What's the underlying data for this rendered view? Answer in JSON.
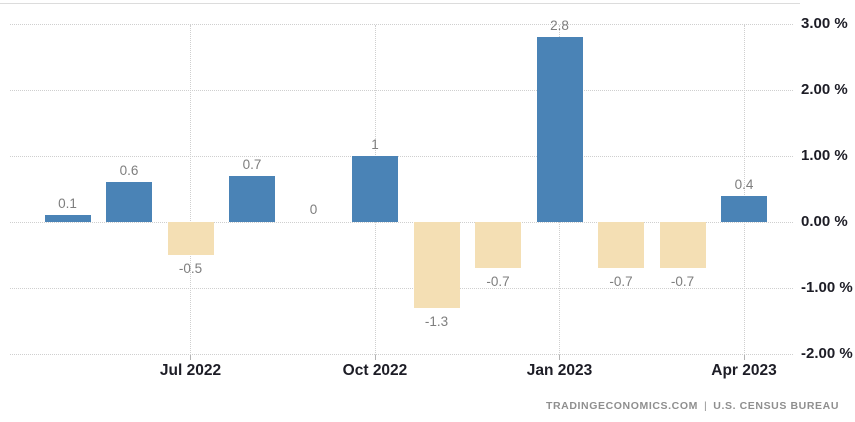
{
  "chart_data": {
    "type": "bar",
    "title": "",
    "values": [
      0.1,
      0.6,
      -0.5,
      0.7,
      0,
      1,
      -1.3,
      -0.7,
      2.8,
      -0.7,
      -0.7,
      0.4
    ],
    "bar_labels": [
      "0.1",
      "0.6",
      "-0.5",
      "0.7",
      "0",
      "1",
      "-1.3",
      "-0.7",
      "2.8",
      "-0.7",
      "-0.7",
      "0.4"
    ],
    "x_axis": {
      "ticks": [
        {
          "index": 2,
          "label": "Jul 2022"
        },
        {
          "index": 5,
          "label": "Oct 2022"
        },
        {
          "index": 8,
          "label": "Jan 2023"
        },
        {
          "index": 11,
          "label": "Apr 2023"
        }
      ]
    },
    "y_axis": {
      "unit": "%",
      "range": [
        -2,
        3
      ],
      "ticks": [
        {
          "value": 3,
          "label": "3.00 %"
        },
        {
          "value": 2,
          "label": "2.00 %"
        },
        {
          "value": 1,
          "label": "1.00 %"
        },
        {
          "value": 0,
          "label": "0.00 %"
        },
        {
          "value": -1,
          "label": "-1.00 %"
        },
        {
          "value": -2,
          "label": "-2.00 %"
        }
      ]
    },
    "grid": {
      "style": "dotted",
      "horizontal": true,
      "vertical": true
    },
    "legend": "none",
    "bar_label_position": "outside-end",
    "colors": {
      "positive": "#4A83B6",
      "negative": "#F4DFB4",
      "grid": "#cfcfcf",
      "tick": "#b3b3b3",
      "axis_text": "#1d1d26",
      "value_label": "#7e7e7e",
      "top_border": "#dcdcdc",
      "background": "#ffffff"
    }
  },
  "footer": {
    "site": "TRADINGECONOMICS.COM",
    "separator": "|",
    "org": "U.S. CENSUS BUREAU"
  }
}
